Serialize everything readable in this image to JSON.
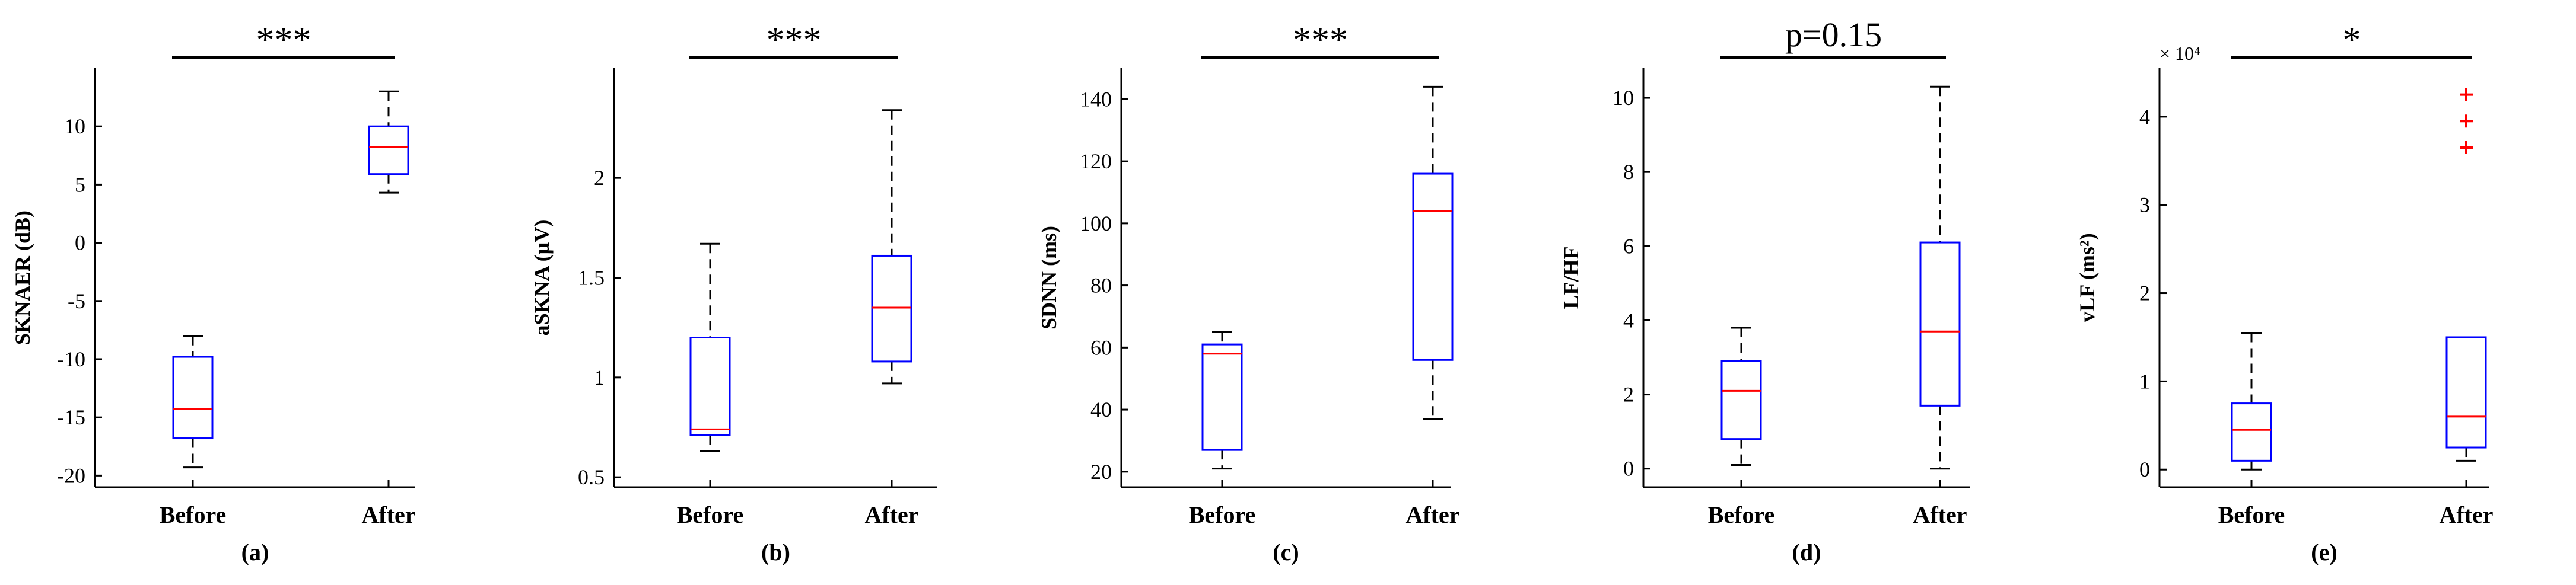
{
  "figure_title": "",
  "colors": {
    "box": "#0000ff",
    "median": "#ff0000",
    "whisker": "#000000",
    "outlier": "#ff0000",
    "axis": "#000000"
  },
  "chart_data": [
    {
      "type": "box",
      "panel_label": "(a)",
      "ylabel": "SKNAER (dB)",
      "categories": [
        "Before",
        "After"
      ],
      "ylim": [
        -21,
        15
      ],
      "yticks": [
        -20,
        -15,
        -10,
        -5,
        0,
        5,
        10
      ],
      "ytick_labels": [
        "-20",
        "-15",
        "-10",
        "-5",
        "0",
        "5",
        "10"
      ],
      "boxes": [
        {
          "name": "Before",
          "min": -19.3,
          "q1": -16.8,
          "median": -14.3,
          "q3": -9.8,
          "max": -8.0,
          "outliers": []
        },
        {
          "name": "After",
          "min": 4.3,
          "q1": 5.9,
          "median": 8.2,
          "q3": 10.0,
          "max": 13.0,
          "outliers": []
        }
      ],
      "significance": "***"
    },
    {
      "type": "box",
      "panel_label": "(b)",
      "ylabel": "aSKNA (µV)",
      "categories": [
        "Before",
        "After"
      ],
      "ylim": [
        0.45,
        2.55
      ],
      "yticks": [
        0.5,
        1,
        1.5,
        2
      ],
      "ytick_labels": [
        "0.5",
        "1",
        "1.5",
        "2"
      ],
      "boxes": [
        {
          "name": "Before",
          "min": 0.63,
          "q1": 0.71,
          "median": 0.74,
          "q3": 1.2,
          "max": 1.67,
          "outliers": []
        },
        {
          "name": "After",
          "min": 0.97,
          "q1": 1.08,
          "median": 1.35,
          "q3": 1.61,
          "max": 2.34,
          "outliers": []
        }
      ],
      "significance": "***"
    },
    {
      "type": "box",
      "panel_label": "(c)",
      "ylabel": "SDNN (ms)",
      "categories": [
        "Before",
        "After"
      ],
      "ylim": [
        15,
        150
      ],
      "yticks": [
        20,
        40,
        60,
        80,
        100,
        120,
        140
      ],
      "ytick_labels": [
        "20",
        "40",
        "60",
        "80",
        "100",
        "120",
        "140"
      ],
      "boxes": [
        {
          "name": "Before",
          "min": 21,
          "q1": 27,
          "median": 58,
          "q3": 61,
          "max": 65,
          "outliers": []
        },
        {
          "name": "After",
          "min": 37,
          "q1": 56,
          "median": 104,
          "q3": 116,
          "max": 144,
          "outliers": []
        }
      ],
      "significance": "***"
    },
    {
      "type": "box",
      "panel_label": "(d)",
      "ylabel": "LF/HF",
      "categories": [
        "Before",
        "After"
      ],
      "ylim": [
        -0.5,
        10.8
      ],
      "yticks": [
        0,
        2,
        4,
        6,
        8,
        10
      ],
      "ytick_labels": [
        "0",
        "2",
        "4",
        "6",
        "8",
        "10"
      ],
      "boxes": [
        {
          "name": "Before",
          "min": 0.1,
          "q1": 0.8,
          "median": 2.1,
          "q3": 2.9,
          "max": 3.8,
          "outliers": []
        },
        {
          "name": "After",
          "min": 0.0,
          "q1": 1.7,
          "median": 3.7,
          "q3": 6.1,
          "max": 10.3,
          "outliers": []
        }
      ],
      "significance": "p=0.15"
    },
    {
      "type": "box",
      "panel_label": "(e)",
      "ylabel": "vLF (ms²)",
      "categories": [
        "Before",
        "After"
      ],
      "ylim": [
        -0.2,
        4.55
      ],
      "exponent_label": "× 10⁴",
      "yticks": [
        0,
        1,
        2,
        3,
        4
      ],
      "ytick_labels": [
        "0",
        "1",
        "2",
        "3",
        "4"
      ],
      "boxes": [
        {
          "name": "Before",
          "min": 0.0,
          "q1": 0.1,
          "median": 0.45,
          "q3": 0.75,
          "max": 1.55,
          "outliers": []
        },
        {
          "name": "After",
          "min": 0.1,
          "q1": 0.25,
          "median": 0.6,
          "q3": 1.5,
          "max": 1.5,
          "outliers": [
            3.65,
            3.95,
            4.25
          ]
        }
      ],
      "significance": "*"
    }
  ]
}
